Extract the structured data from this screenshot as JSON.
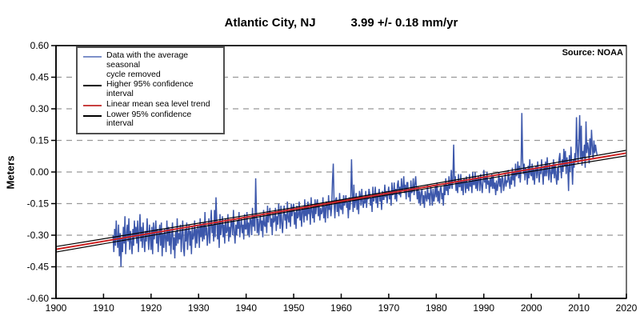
{
  "chart_data": {
    "type": "line",
    "station": "Atlantic City, NJ",
    "rate": "3.99 +/- 0.18 mm/yr",
    "source": "Source: NOAA",
    "ylabel": "Meters",
    "xlim": [
      1900,
      2020
    ],
    "ylim": [
      -0.6,
      0.6
    ],
    "xticks": [
      "1900",
      "1910",
      "1920",
      "1930",
      "1940",
      "1950",
      "1960",
      "1970",
      "1980",
      "1990",
      "2000",
      "2010",
      "2020"
    ],
    "yticks": [
      {
        "v": 0.6,
        "label": "0.60"
      },
      {
        "v": 0.45,
        "label": "0.45"
      },
      {
        "v": 0.3,
        "label": "0.30"
      },
      {
        "v": 0.15,
        "label": "0.15"
      },
      {
        "v": 0.0,
        "label": "0.00"
      },
      {
        "v": -0.15,
        "label": "-0.15"
      },
      {
        "v": -0.3,
        "label": "-0.30"
      },
      {
        "v": -0.45,
        "label": "-0.45"
      },
      {
        "v": -0.6,
        "label": "-0.60"
      }
    ],
    "grid": "horizontal-dashed",
    "colors": {
      "series": "#3c57ab",
      "trend": "#cc2020",
      "confidence": "#000000",
      "gridline": "#999999",
      "frame": "#444444"
    },
    "legend": [
      {
        "label": "Data with the average seasonal\ncycle removed",
        "color": "#7d90c9"
      },
      {
        "label": "Higher 95% confidence interval",
        "color": "#000000"
      },
      {
        "label": "Linear mean sea level trend",
        "color": "#c84040"
      },
      {
        "label": "Lower 95% confidence interval",
        "color": "#000000"
      }
    ],
    "trend_line": {
      "x": [
        1900,
        2020
      ],
      "y_m": [
        -0.367,
        0.09
      ],
      "rate_mm_per_yr": 3.99,
      "ci_mm_per_yr": 0.18
    },
    "confidence_offset_m": {
      "end": 0.013,
      "mid": 0.0065
    },
    "series": {
      "name": "Data with the average seasonal cycle removed",
      "unit": "mm",
      "samples_per_year": 6,
      "rows": [
        [
          1912,
          -300,
          -380,
          -270,
          -350,
          -230,
          -320
        ],
        [
          1913,
          -360,
          -250,
          -400,
          -290,
          -450,
          -310
        ],
        [
          1914,
          -380,
          -260,
          -340,
          -210,
          -390,
          -300
        ],
        [
          1915,
          -250,
          -330,
          -220,
          -370,
          -280,
          -340
        ],
        [
          1916,
          -390,
          -270,
          -350,
          -230,
          -310,
          -260
        ],
        [
          1917,
          -340,
          -230,
          -380,
          -280,
          -200,
          -330
        ],
        [
          1918,
          -260,
          -360,
          -240,
          -320,
          -380,
          -280
        ],
        [
          1919,
          -330,
          -220,
          -300,
          -370,
          -250,
          -310
        ],
        [
          1920,
          -370,
          -260,
          -390,
          -240,
          -320,
          -280
        ],
        [
          1921,
          -230,
          -340,
          -270,
          -380,
          -300,
          -250
        ],
        [
          1922,
          -350,
          -240,
          -400,
          -290,
          -360,
          -270
        ],
        [
          1923,
          -310,
          -380,
          -230,
          -330,
          -260,
          -350
        ],
        [
          1924,
          -270,
          -390,
          -300,
          -240,
          -370,
          -310
        ],
        [
          1925,
          -410,
          -280,
          -350,
          -220,
          -340,
          -290
        ],
        [
          1926,
          -320,
          -250,
          -380,
          -300,
          -230,
          -360
        ],
        [
          1927,
          -400,
          -270,
          -330,
          -240,
          -370,
          -290
        ],
        [
          1928,
          -250,
          -350,
          -280,
          -390,
          -260,
          -320
        ],
        [
          1929,
          -300,
          -230,
          -360,
          -270,
          -340,
          -250
        ],
        [
          1930,
          -280,
          -360,
          -220,
          -310,
          -250,
          -330
        ],
        [
          1931,
          -240,
          -320,
          -190,
          -300,
          -260,
          -350
        ],
        [
          1932,
          -300,
          -220,
          -340,
          -260,
          -180,
          -290
        ],
        [
          1933,
          -250,
          -330,
          -180,
          -310,
          -120,
          -230
        ],
        [
          1934,
          -320,
          -240,
          -360,
          -200,
          -300,
          -260
        ],
        [
          1935,
          -210,
          -310,
          -250,
          -340,
          -220,
          -290
        ],
        [
          1936,
          -280,
          -200,
          -330,
          -260,
          -310,
          -230
        ],
        [
          1937,
          -240,
          -300,
          -180,
          -280,
          -340,
          -250
        ],
        [
          1938,
          -300,
          -230,
          -270,
          -190,
          -310,
          -260
        ],
        [
          1939,
          -220,
          -290,
          -250,
          -320,
          -200,
          -270
        ],
        [
          1940,
          -270,
          -190,
          -300,
          -240,
          -310,
          -220
        ],
        [
          1941,
          -230,
          -300,
          -170,
          -260,
          -210,
          -280
        ],
        [
          1942,
          -30,
          -180,
          -290,
          -220,
          -300,
          -240
        ],
        [
          1943,
          -200,
          -280,
          -230,
          -310,
          -180,
          -250
        ],
        [
          1944,
          -260,
          -210,
          -290,
          -160,
          -240,
          -200
        ],
        [
          1945,
          -170,
          -260,
          -220,
          -300,
          -190,
          -240
        ],
        [
          1946,
          -230,
          -170,
          -280,
          -210,
          -250,
          -150
        ],
        [
          1947,
          -200,
          -270,
          -160,
          -240,
          -290,
          -210
        ],
        [
          1948,
          -160,
          -230,
          -200,
          -270,
          -140,
          -220
        ],
        [
          1949,
          -240,
          -180,
          -260,
          -150,
          -210,
          -170
        ],
        [
          1950,
          -150,
          -250,
          -190,
          -270,
          -160,
          -220
        ],
        [
          1951,
          -210,
          -140,
          -230,
          -180,
          -260,
          -170
        ],
        [
          1952,
          -180,
          -240,
          -130,
          -210,
          -160,
          -230
        ],
        [
          1953,
          -140,
          -200,
          -170,
          -250,
          -120,
          -190
        ],
        [
          1954,
          -220,
          -160,
          -240,
          -130,
          -200,
          -150
        ],
        [
          1955,
          -130,
          -210,
          -150,
          -230,
          -170,
          -200
        ],
        [
          1956,
          -190,
          -120,
          -220,
          -160,
          -240,
          -140
        ],
        [
          1957,
          -150,
          -220,
          -110,
          -180,
          -140,
          -210
        ],
        [
          1958,
          -170,
          -40,
          40,
          -150,
          -220,
          -130
        ],
        [
          1959,
          -120,
          -190,
          -140,
          -210,
          -100,
          -170
        ],
        [
          1960,
          -180,
          -130,
          -200,
          -110,
          -160,
          -140
        ],
        [
          1961,
          -110,
          -170,
          -140,
          -220,
          -120,
          -180
        ],
        [
          1962,
          -130,
          60,
          -100,
          -190,
          -60,
          -170
        ],
        [
          1963,
          -140,
          -100,
          -180,
          -120,
          -200,
          -90
        ],
        [
          1964,
          -110,
          -160,
          -80,
          -140,
          -170,
          -120
        ],
        [
          1965,
          -150,
          -90,
          -170,
          -110,
          -130,
          -80
        ],
        [
          1966,
          -100,
          -160,
          -120,
          -190,
          -70,
          -140
        ],
        [
          1967,
          -120,
          -70,
          -150,
          -100,
          -170,
          -110
        ],
        [
          1968,
          -80,
          -140,
          -110,
          -180,
          -90,
          -130
        ],
        [
          1969,
          -130,
          -60,
          -120,
          -90,
          -150,
          -100
        ],
        [
          1970,
          -70,
          -130,
          -90,
          -160,
          -50,
          -110
        ],
        [
          1971,
          -100,
          -50,
          -130,
          -80,
          -140,
          -60
        ],
        [
          1972,
          -40,
          -110,
          -70,
          -120,
          -30,
          -90
        ],
        [
          1973,
          -80,
          -20,
          -100,
          -60,
          -130,
          -50
        ],
        [
          1974,
          -50,
          -120,
          -80,
          -140,
          -40,
          -100
        ],
        [
          1975,
          -90,
          -30,
          -110,
          -60,
          -20,
          -80
        ],
        [
          1976,
          -130,
          -70,
          -150,
          -90,
          -160,
          -100
        ],
        [
          1977,
          -80,
          -150,
          -110,
          -170,
          -90,
          -120
        ],
        [
          1978,
          -140,
          -60,
          -130,
          -100,
          -160,
          -70
        ],
        [
          1979,
          -100,
          -160,
          -80,
          -140,
          -110,
          -60
        ],
        [
          1980,
          -120,
          -50,
          -140,
          -90,
          -150,
          -80
        ],
        [
          1981,
          -70,
          -130,
          -100,
          -160,
          -60,
          -110
        ],
        [
          1982,
          -30,
          -90,
          -60,
          -110,
          -20,
          -80
        ],
        [
          1983,
          -60,
          10,
          -80,
          -30,
          130,
          -50
        ],
        [
          1984,
          -20,
          -90,
          -50,
          -100,
          -10,
          -70
        ],
        [
          1985,
          -70,
          -10,
          -90,
          -40,
          -110,
          -30
        ],
        [
          1986,
          -40,
          -100,
          -20,
          -80,
          -50,
          -90
        ],
        [
          1987,
          -10,
          -70,
          -40,
          -100,
          0,
          -60
        ],
        [
          1988,
          -60,
          0,
          -80,
          -30,
          -90,
          -20
        ],
        [
          1989,
          -30,
          -90,
          -10,
          -60,
          -100,
          -40
        ],
        [
          1990,
          10,
          -50,
          -20,
          -80,
          0,
          -60
        ],
        [
          1991,
          -40,
          -100,
          -30,
          -70,
          -10,
          -80
        ],
        [
          1992,
          -20,
          -80,
          -50,
          -110,
          -40,
          -90
        ],
        [
          1993,
          -60,
          0,
          -70,
          -30,
          -100,
          -20
        ],
        [
          1994,
          -30,
          -90,
          -60,
          -10,
          -70,
          -40
        ],
        [
          1995,
          -50,
          10,
          -40,
          -80,
          -20,
          -60
        ],
        [
          1996,
          20,
          -40,
          0,
          -70,
          40,
          -20
        ],
        [
          1997,
          -10,
          50,
          -30,
          30,
          -50,
          10
        ],
        [
          1998,
          280,
          60,
          -10,
          40,
          -40,
          20
        ],
        [
          1999,
          0,
          -60,
          30,
          -30,
          60,
          -10
        ],
        [
          2000,
          -20,
          40,
          -40,
          20,
          -60,
          10
        ],
        [
          2001,
          30,
          -30,
          50,
          -10,
          -50,
          20
        ],
        [
          2002,
          -10,
          60,
          0,
          -60,
          30,
          -20
        ],
        [
          2003,
          50,
          -20,
          70,
          10,
          -40,
          40
        ],
        [
          2004,
          0,
          -50,
          30,
          -10,
          60,
          -30
        ],
        [
          2005,
          40,
          -20,
          -60,
          20,
          -40,
          60
        ],
        [
          2006,
          90,
          20,
          -30,
          60,
          0,
          110
        ],
        [
          2007,
          30,
          100,
          -10,
          70,
          20,
          -90
        ],
        [
          2008,
          80,
          0,
          120,
          40,
          -60,
          60
        ],
        [
          2009,
          20,
          90,
          50,
          260,
          110,
          40
        ],
        [
          2010,
          150,
          270,
          60,
          220,
          30,
          100
        ],
        [
          2011,
          70,
          130,
          20,
          240,
          90,
          140
        ],
        [
          2012,
          110,
          40,
          160,
          80,
          200,
          120
        ],
        [
          2013,
          60,
          150,
          90,
          130,
          100,
          80
        ]
      ]
    }
  }
}
